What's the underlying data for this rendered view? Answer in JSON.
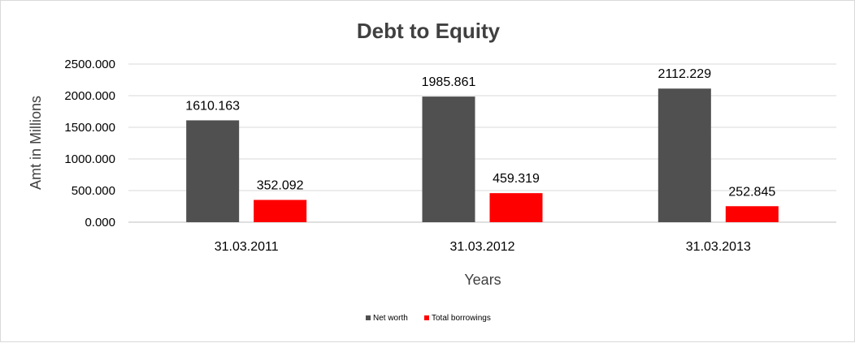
{
  "chart_data": {
    "type": "bar",
    "title": "Debt to Equity",
    "xlabel": "Years",
    "ylabel": "Amt in Millions",
    "categories": [
      "31.03.2011",
      "31.03.2012",
      "31.03.2013"
    ],
    "series": [
      {
        "name": "Net worth",
        "color": "#505050",
        "values": [
          1610.163,
          1985.861,
          2112.229
        ],
        "labels": [
          "1610.163",
          "1985.861",
          "2112.229"
        ]
      },
      {
        "name": "Total borrowings",
        "color": "#ff0000",
        "values": [
          352.092,
          459.319,
          252.845
        ],
        "labels": [
          "352.092",
          "459.319",
          "252.845"
        ]
      }
    ],
    "yticks": [
      0,
      500,
      1000,
      1500,
      2000,
      2500
    ],
    "ytick_labels": [
      "0.000",
      "500.000",
      "1000.000",
      "1500.000",
      "2000.000",
      "2500.000"
    ],
    "ylim": [
      0,
      2500
    ],
    "grid": true,
    "legend_position": "bottom"
  }
}
